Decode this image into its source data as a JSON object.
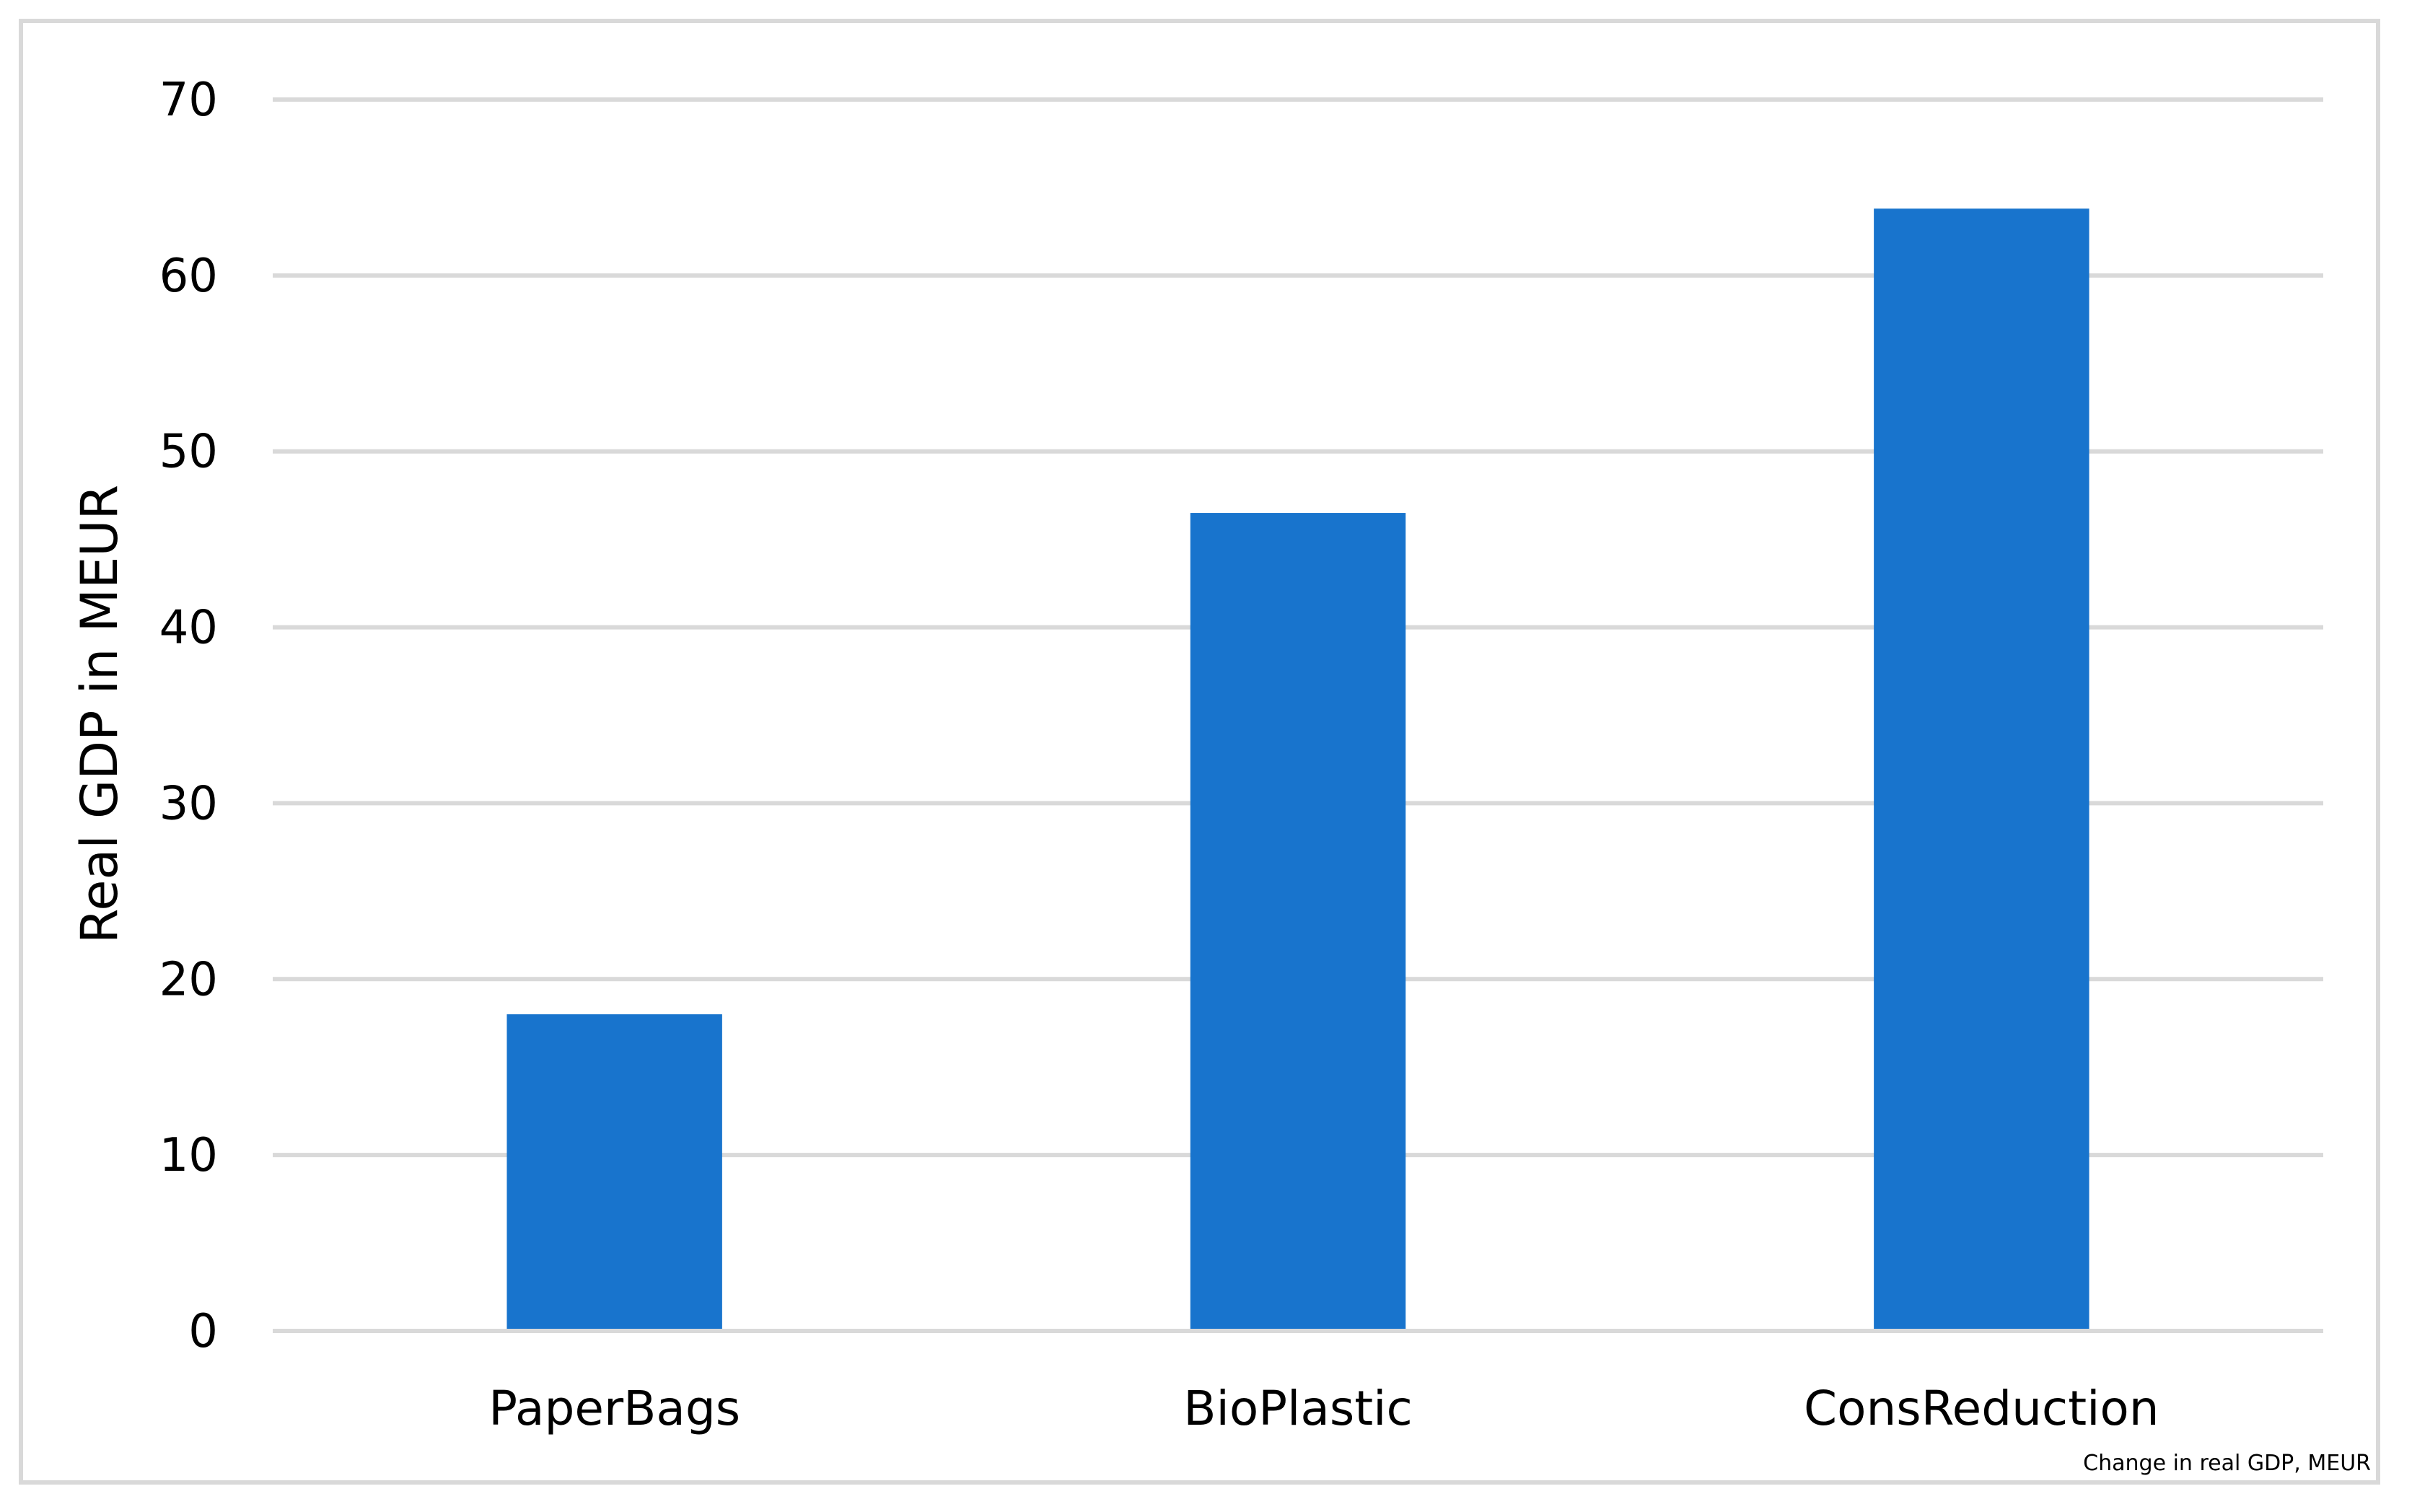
{
  "chart_data": {
    "type": "bar",
    "categories": [
      "PaperBags",
      "BioPlastic",
      "ConsReduction"
    ],
    "values": [
      18,
      46.5,
      63.8
    ],
    "title": "",
    "xlabel": "",
    "ylabel": "Real GDP in MEUR",
    "ylim": [
      0,
      70
    ],
    "yticks": [
      0,
      10,
      20,
      30,
      40,
      50,
      60,
      70
    ],
    "grid": true,
    "legend": "none",
    "bar_color": "#1874cd",
    "note": "Change in real GDP, MEUR"
  }
}
